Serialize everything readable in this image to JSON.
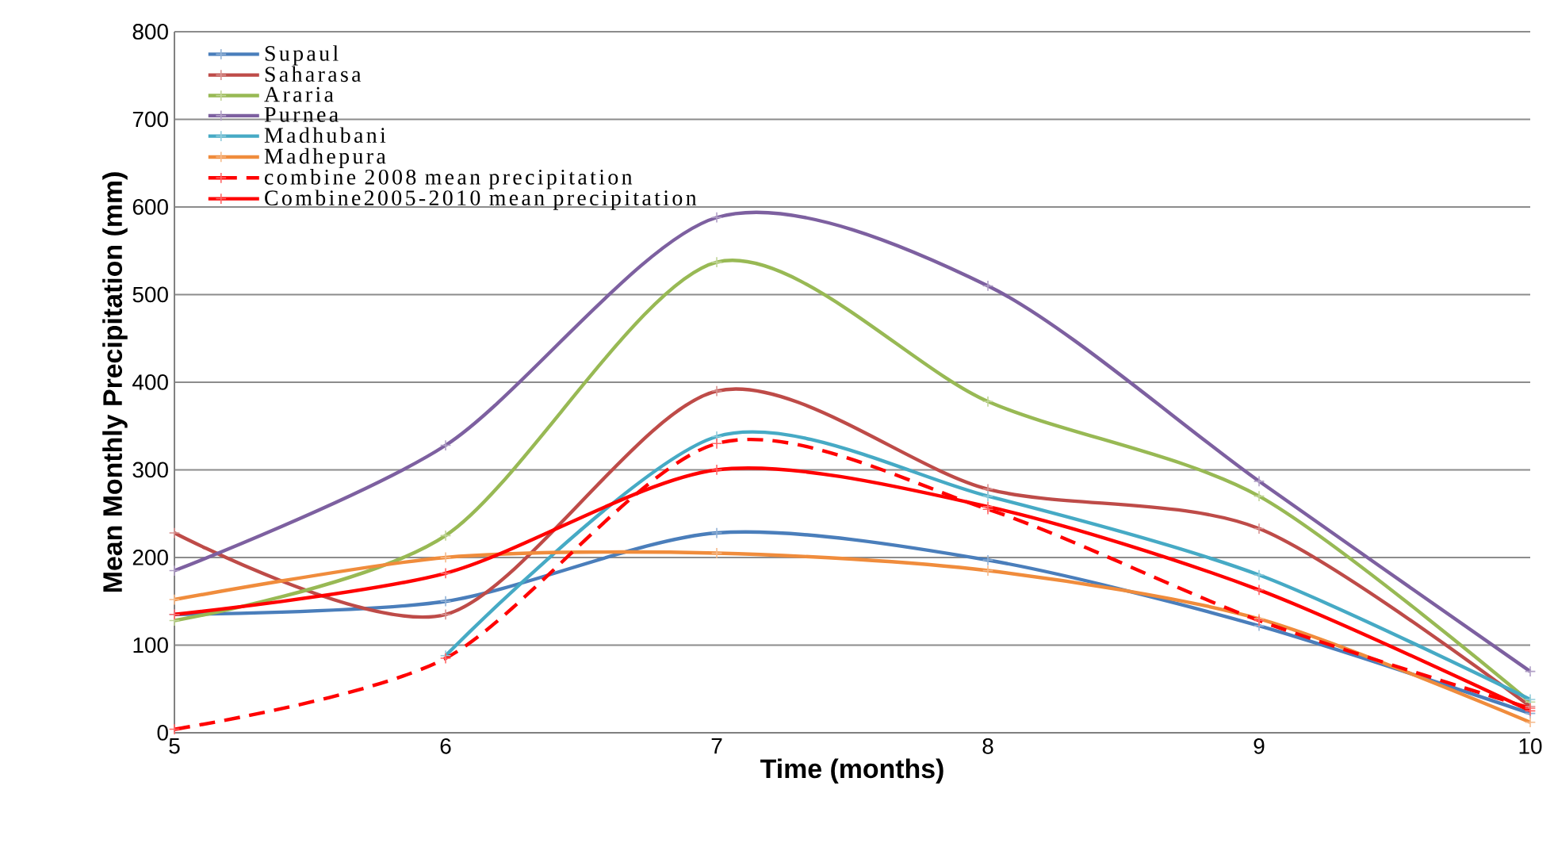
{
  "chart_data": {
    "type": "line",
    "xlabel": "Time (months)",
    "ylabel": "Mean Monthly Precipitation (mm)",
    "x": [
      5,
      6,
      7,
      8,
      9,
      10
    ],
    "xlim": [
      5,
      10
    ],
    "xticks": [
      5,
      6,
      7,
      8,
      9,
      10
    ],
    "ylim": [
      0,
      800
    ],
    "yticks": [
      0,
      100,
      200,
      300,
      400,
      500,
      600,
      700,
      800
    ],
    "grid": "y",
    "legend": "top left",
    "marker": "cross",
    "series": [
      {
        "name": "Supaul",
        "color": "#4a7ebb",
        "values": [
          135,
          150,
          228,
          197,
          122,
          22
        ]
      },
      {
        "name": "Saharasa",
        "color": "#be4b48",
        "values": [
          228,
          135,
          390,
          278,
          233,
          30
        ]
      },
      {
        "name": "Araria",
        "color": "#98b954",
        "values": [
          128,
          225,
          537,
          378,
          270,
          35
        ]
      },
      {
        "name": "Purnea",
        "color": "#7d60a0",
        "values": [
          185,
          328,
          588,
          510,
          287,
          70
        ]
      },
      {
        "name": "Madhubani",
        "color": "#46aac5",
        "values": [
          null,
          88,
          338,
          270,
          180,
          38
        ]
      },
      {
        "name": "Madhepura",
        "color": "#f08c3c",
        "values": [
          152,
          200,
          205,
          185,
          130,
          12
        ]
      },
      {
        "name": "combine 2008 mean precipitation",
        "color": "#ff0000",
        "line_style": "dashed",
        "values": [
          4,
          85,
          330,
          255,
          128,
          28
        ]
      },
      {
        "name": "Combine2005-2010 mean precipitation",
        "color": "#ff0000",
        "values": [
          135,
          182,
          300,
          258,
          163,
          25
        ]
      }
    ]
  }
}
